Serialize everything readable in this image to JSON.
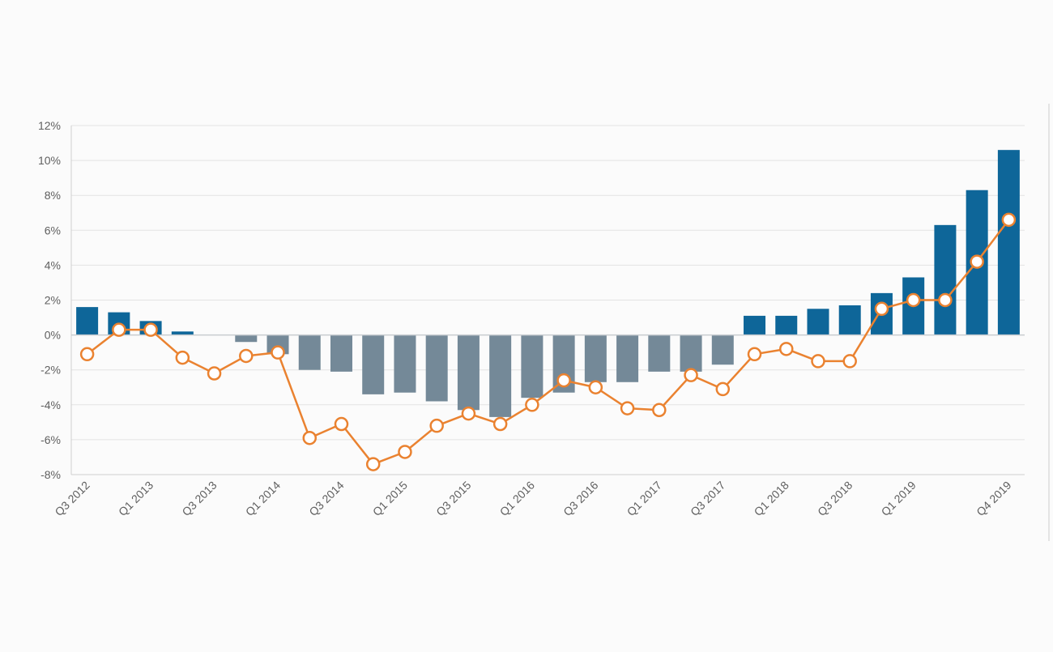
{
  "chart_data": {
    "type": "bar",
    "categories": [
      "Q3 2012",
      "Q4 2012",
      "Q1 2013",
      "Q2 2013",
      "Q3 2013",
      "Q4 2013",
      "Q1 2014",
      "Q2 2014",
      "Q3 2014",
      "Q4 2014",
      "Q1 2015",
      "Q2 2015",
      "Q3 2015",
      "Q4 2015",
      "Q1 2016",
      "Q2 2016",
      "Q3 2016",
      "Q4 2016",
      "Q1 2017",
      "Q2 2017",
      "Q3 2017",
      "Q4 2017",
      "Q1 2018",
      "Q2 2018",
      "Q3 2018",
      "Q4 2018",
      "Q1 2019",
      "Q2 2019",
      "Q3 2019",
      "Q4 2019"
    ],
    "x_tick_labels": [
      "Q3 2012",
      "",
      "Q1 2013",
      "",
      "Q3 2013",
      "",
      "Q1 2014",
      "",
      "Q3 2014",
      "",
      "Q1 2015",
      "",
      "Q3 2015",
      "",
      "Q1 2016",
      "",
      "Q3 2016",
      "",
      "Q1 2017",
      "",
      "Q3 2017",
      "",
      "Q1 2018",
      "",
      "Q3 2018",
      "",
      "Q1 2019",
      "",
      "",
      "Q4 2019"
    ],
    "series": [
      {
        "type": "bar",
        "values": [
          1.6,
          1.3,
          0.8,
          0.2,
          0.0,
          -0.4,
          -1.1,
          -2.0,
          -2.1,
          -3.4,
          -3.3,
          -3.8,
          -4.3,
          -4.7,
          -3.6,
          -3.3,
          -2.7,
          -2.7,
          -2.1,
          -2.1,
          -1.7,
          1.1,
          1.1,
          1.5,
          1.7,
          2.4,
          3.3,
          6.3,
          8.3,
          10.6
        ],
        "positive_color": "#0e6699",
        "negative_color": "#748998"
      },
      {
        "type": "line",
        "values": [
          -1.1,
          0.3,
          0.3,
          -1.3,
          -2.2,
          -1.2,
          -1.0,
          -5.9,
          -5.1,
          -7.4,
          -6.7,
          -5.2,
          -4.5,
          -5.1,
          -4.0,
          -2.6,
          -3.0,
          -4.2,
          -4.3,
          -2.3,
          -3.1,
          -1.1,
          -0.8,
          -1.5,
          -1.5,
          1.5,
          2.0,
          2.0,
          4.2,
          6.6
        ],
        "color": "#ea8230",
        "marker_fill": "#ffffff"
      }
    ],
    "y_ticks": [
      "12%",
      "10%",
      "8%",
      "6%",
      "4%",
      "2%",
      "0%",
      "-2%",
      "-4%",
      "-6%",
      "-8%"
    ],
    "ylim": [
      -8,
      12
    ],
    "y_step": 2,
    "grid": true,
    "legend": "none",
    "title": "",
    "xlabel": "",
    "ylabel": ""
  }
}
